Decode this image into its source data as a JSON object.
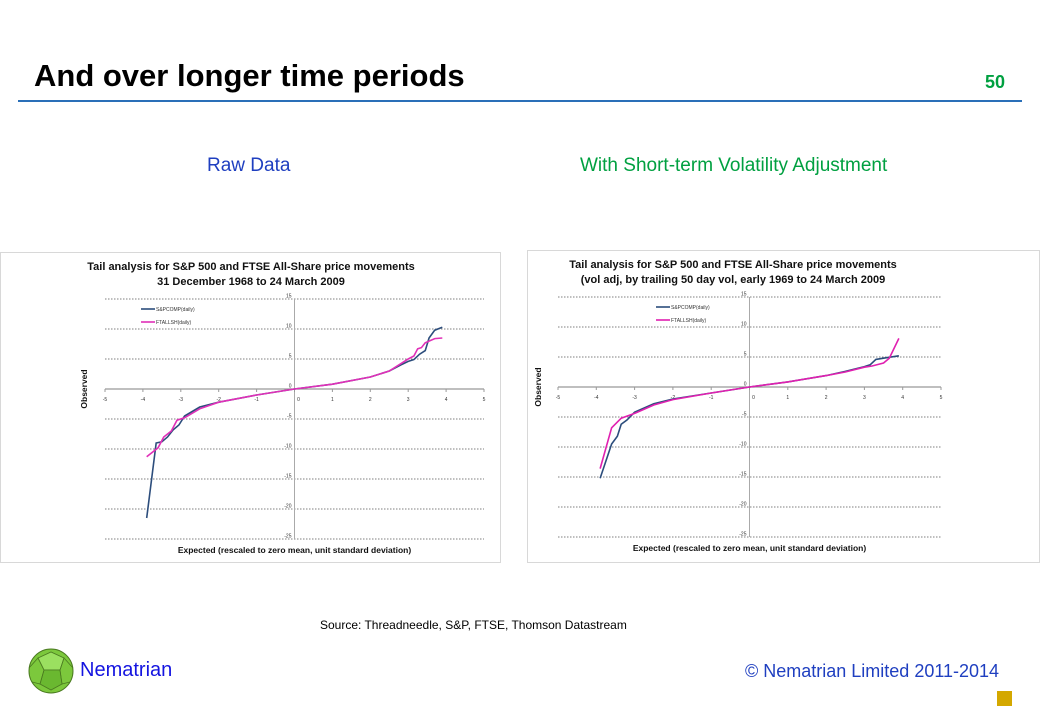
{
  "slide": {
    "title": "And over longer time periods",
    "page_number": "50",
    "subtitle_left": "Raw Data",
    "subtitle_right": "With Short-term Volatility Adjustment",
    "source": "Source: Threadneedle,  S&P, FTSE, Thomson Datastream",
    "brand": "Nematrian",
    "copyright": "© Nematrian Limited 2011-2014"
  },
  "chart_data": [
    {
      "type": "line",
      "title": [
        "Tail analysis for S&P 500 and FTSE All-Share price movements",
        "31 December 1968 to 24 March 2009"
      ],
      "xlabel": "Expected (rescaled to zero mean, unit standard deviation)",
      "ylabel": "Observed",
      "xlim": [
        -5,
        5
      ],
      "ylim": [
        -25,
        15
      ],
      "xticks": [
        -5,
        -4,
        -3,
        -2,
        -1,
        0,
        1,
        2,
        3,
        4,
        5
      ],
      "yticks": [
        15,
        10,
        5,
        0,
        -5,
        -10,
        -15,
        -20,
        -25
      ],
      "grid": true,
      "legend": "top-left",
      "colors": [
        "#2c4d7c",
        "#e030b8"
      ],
      "series": [
        {
          "name": "S&PCOMP(daily)",
          "x": [
            -3.9,
            -3.65,
            -3.5,
            -3.35,
            -3.2,
            -3.05,
            -2.9,
            -2.5,
            -2,
            -1,
            0,
            1,
            2,
            2.5,
            2.8,
            3,
            3.15,
            3.3,
            3.45,
            3.55,
            3.7,
            3.9
          ],
          "y": [
            -21.5,
            -9,
            -8.8,
            -8,
            -6.8,
            -6,
            -4.5,
            -3,
            -2.2,
            -1,
            0,
            0.8,
            2,
            3,
            4,
            4.6,
            4.9,
            5.8,
            6.4,
            8.5,
            9.8,
            10.3
          ]
        },
        {
          "name": "FTALLSH(daily)",
          "x": [
            -3.9,
            -3.6,
            -3.45,
            -3.25,
            -3.1,
            -2.9,
            -2.5,
            -2,
            -1,
            0,
            1,
            2,
            2.5,
            3,
            3.15,
            3.25,
            3.35,
            3.45,
            3.7,
            3.9
          ],
          "y": [
            -11.3,
            -9.8,
            -8,
            -7,
            -5.2,
            -4.8,
            -3.3,
            -2.2,
            -1,
            0,
            0.8,
            2,
            3,
            5,
            5.5,
            6.7,
            6.9,
            7.7,
            8.4,
            8.5
          ]
        }
      ]
    },
    {
      "type": "line",
      "title": [
        "Tail analysis for S&P 500 and FTSE All-Share price movements",
        "(vol adj, by trailing 50 day vol, early 1969 to 24 March 2009"
      ],
      "xlabel": "Expected (rescaled to zero mean, unit standard deviation)",
      "ylabel": "Observed",
      "xlim": [
        -5,
        5
      ],
      "ylim": [
        -25,
        15
      ],
      "xticks": [
        -5,
        -4,
        -3,
        -2,
        -1,
        0,
        1,
        2,
        3,
        4,
        5
      ],
      "yticks": [
        15,
        10,
        5,
        0,
        -5,
        -10,
        -15,
        -20,
        -25
      ],
      "grid": true,
      "legend": "top-left",
      "colors": [
        "#2c4d7c",
        "#e020b0"
      ],
      "series": [
        {
          "name": "S&PCOMP(daily)",
          "x": [
            -3.9,
            -3.6,
            -3.45,
            -3.35,
            -3.2,
            -3,
            -2.5,
            -2,
            -1,
            0,
            1,
            2,
            2.5,
            3,
            3.15,
            3.3,
            3.6,
            3.9
          ],
          "y": [
            -15.2,
            -9.5,
            -8.2,
            -6.2,
            -5.5,
            -4.2,
            -2.8,
            -2,
            -1,
            0,
            0.85,
            1.9,
            2.6,
            3.4,
            3.7,
            4.6,
            4.9,
            5.2
          ]
        },
        {
          "name": "FTALLSH(daily)",
          "x": [
            -3.9,
            -3.6,
            -3.35,
            -3,
            -2.5,
            -2,
            -1,
            0,
            1,
            2,
            2.5,
            3,
            3.2,
            3.5,
            3.65,
            3.9
          ],
          "y": [
            -13.6,
            -6.8,
            -5.2,
            -4.4,
            -3,
            -2.1,
            -1,
            0,
            0.85,
            1.9,
            2.5,
            3.3,
            3.5,
            4,
            4.8,
            8.1
          ]
        }
      ]
    }
  ]
}
